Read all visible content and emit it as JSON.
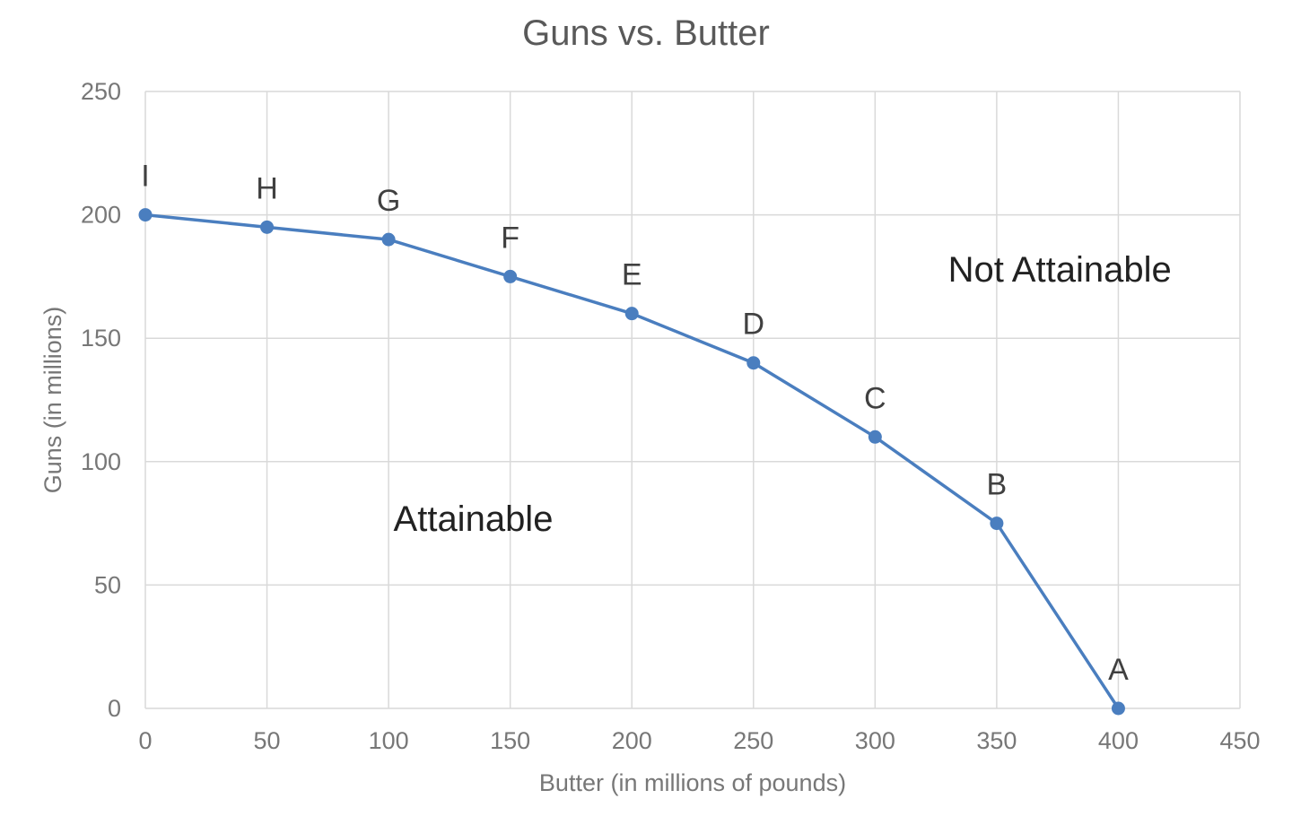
{
  "chart_data": {
    "type": "line",
    "title": "Guns vs. Butter",
    "xlabel": "Butter (in millions of pounds)",
    "ylabel": "Guns (in millions)",
    "xlim": [
      0,
      450
    ],
    "ylim": [
      0,
      250
    ],
    "xticks": [
      0,
      50,
      100,
      150,
      200,
      250,
      300,
      350,
      400,
      450
    ],
    "yticks": [
      0,
      50,
      100,
      150,
      200,
      250
    ],
    "grid": true,
    "legend": "none",
    "color": "#4a7ebf",
    "series": [
      {
        "points": [
          {
            "label": "I",
            "x": 0,
            "y": 200
          },
          {
            "label": "H",
            "x": 50,
            "y": 195
          },
          {
            "label": "G",
            "x": 100,
            "y": 190
          },
          {
            "label": "F",
            "x": 150,
            "y": 175
          },
          {
            "label": "E",
            "x": 200,
            "y": 160
          },
          {
            "label": "D",
            "x": 250,
            "y": 140
          },
          {
            "label": "C",
            "x": 300,
            "y": 110
          },
          {
            "label": "B",
            "x": 350,
            "y": 75
          },
          {
            "label": "A",
            "x": 400,
            "y": 0
          }
        ]
      }
    ],
    "annotations": [
      {
        "text": "Not Attainable",
        "x": 330,
        "y": 178
      },
      {
        "text": "Attainable",
        "x": 102,
        "y": 77
      }
    ]
  }
}
